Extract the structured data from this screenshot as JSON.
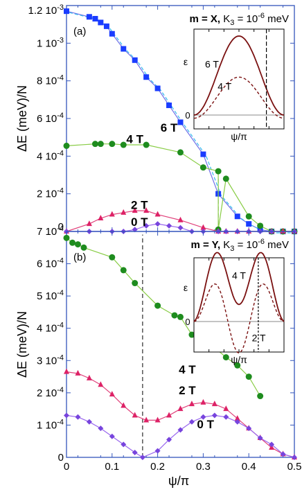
{
  "chart_data": [
    {
      "type": "scatter",
      "panel_label": "(a)",
      "title_bold": "m = X,",
      "title_rest": "K",
      "title_sub": "3",
      "title_eq": "= 10",
      "title_sup": "-6",
      "title_unit": "meV",
      "ylabel": "ΔE (meV)/N",
      "xlim": [
        0,
        0.5
      ],
      "ylim": [
        0,
        0.0012
      ],
      "xticks": [
        {
          "v": 0,
          "t": "0"
        },
        {
          "v": 0.1,
          "t": "0.1"
        },
        {
          "v": 0.2,
          "t": "0.2"
        },
        {
          "v": 0.3,
          "t": "0.3"
        },
        {
          "v": 0.4,
          "t": "0.4"
        },
        {
          "v": 0.5,
          "t": "0.5"
        }
      ],
      "yticks": [
        {
          "v": 0,
          "m": "0",
          "e": ""
        },
        {
          "v": 0.0002,
          "m": "2 10",
          "e": "-4"
        },
        {
          "v": 0.0004,
          "m": "4 10",
          "e": "-4"
        },
        {
          "v": 0.0006,
          "m": "6 10",
          "e": "-4"
        },
        {
          "v": 0.0008,
          "m": "8 10",
          "e": "-4"
        },
        {
          "v": 0.001,
          "m": "1 10",
          "e": "-3"
        },
        {
          "v": 0.0012,
          "m": "1.2 10",
          "e": "-3"
        }
      ],
      "dashed_x": 0.333,
      "dashed_ymax": 0.00029,
      "series": [
        {
          "name": "6 T",
          "color": "#1a3cff",
          "line": "#7070e8",
          "marker": "square",
          "label_xy": [
            0.225,
            0.00053
          ],
          "points": [
            [
              0,
              0.00117
            ],
            [
              0.05,
              0.00114
            ],
            [
              0.063,
              0.00113
            ],
            [
              0.075,
              0.00111
            ],
            [
              0.088,
              0.00109
            ],
            [
              0.1,
              0.00105
            ],
            [
              0.125,
              0.00097
            ],
            [
              0.15,
              0.00091
            ],
            [
              0.175,
              0.00082
            ],
            [
              0.2,
              0.00076
            ],
            [
              0.225,
              0.00067
            ],
            [
              0.25,
              0.00058
            ],
            [
              0.3,
              0.00041
            ],
            [
              0.333,
              0.0002
            ],
            [
              0.375,
              8e-05
            ],
            [
              0.4,
              4e-05
            ],
            [
              0.425,
              1e-05
            ],
            [
              0.45,
              0.0
            ],
            [
              0.475,
              0.0
            ],
            [
              0.5,
              0.0
            ]
          ]
        },
        {
          "name": "4 T",
          "color": "#1e8c1e",
          "line": "#88cc44",
          "marker": "circle",
          "label_xy": [
            0.15,
            0.00047
          ],
          "points": [
            [
              0,
              0.000455
            ],
            [
              0.063,
              0.000465
            ],
            [
              0.075,
              0.000465
            ],
            [
              0.1,
              0.000465
            ],
            [
              0.125,
              0.00046
            ],
            [
              0.175,
              0.00046
            ],
            [
              0.25,
              0.00042
            ],
            [
              0.3,
              0.00034
            ],
            [
              0.333,
              0.00032
            ],
            [
              0.35,
              0.00028
            ],
            [
              0.333,
              1e-05
            ],
            [
              0.4,
              8e-05
            ],
            [
              0.425,
              3e-05
            ],
            [
              0.45,
              0.0
            ],
            [
              0.475,
              0.0
            ],
            [
              0.5,
              0.0
            ]
          ]
        },
        {
          "name": "2 T",
          "color": "#dd2266",
          "line": "#e0407a",
          "marker": "triangle",
          "label_xy": [
            0.16,
            0.00012
          ],
          "points": [
            [
              0,
              0.0
            ],
            [
              0.05,
              4e-05
            ],
            [
              0.075,
              7e-05
            ],
            [
              0.1,
              9e-05
            ],
            [
              0.125,
              0.0001
            ],
            [
              0.15,
              0.00011
            ],
            [
              0.175,
              0.00011
            ],
            [
              0.2,
              9e-05
            ],
            [
              0.25,
              6e-05
            ],
            [
              0.3,
              2e-05
            ],
            [
              0.333,
              0.0
            ],
            [
              0.35,
              0.0
            ],
            [
              0.375,
              -2e-05
            ],
            [
              0.4,
              -2e-05
            ],
            [
              0.45,
              0.0
            ],
            [
              0.475,
              0.0
            ],
            [
              0.5,
              0.0
            ]
          ]
        },
        {
          "name": "0 T",
          "color": "#7744dd",
          "line": "#9966ee",
          "marker": "diamond",
          "label_xy": [
            0.16,
            3e-05
          ],
          "points": [
            [
              0,
              -4e-05
            ],
            [
              0.05,
              -3e-05
            ],
            [
              0.1,
              -1e-05
            ],
            [
              0.125,
              0.0
            ],
            [
              0.15,
              1e-05
            ],
            [
              0.175,
              3e-05
            ],
            [
              0.2,
              4e-05
            ],
            [
              0.225,
              3e-05
            ],
            [
              0.25,
              2e-05
            ],
            [
              0.275,
              0.0
            ],
            [
              0.3,
              -2e-05
            ],
            [
              0.333,
              -4e-05
            ],
            [
              0.35,
              -4e-05
            ],
            [
              0.375,
              -3e-05
            ],
            [
              0.4,
              -2e-05
            ],
            [
              0.425,
              0.0
            ],
            [
              0.45,
              0.0
            ],
            [
              0.5,
              0.0
            ]
          ]
        }
      ],
      "inset": {
        "ylabel": "ε",
        "xlabel": "ψ/π",
        "zero_label": "0",
        "curves": [
          {
            "name": "6 T",
            "style": "solid",
            "amp": 1.0,
            "label_xy": [
              0.2,
              0.6
            ]
          },
          {
            "name": "4 T",
            "style": "dashed",
            "amp": 0.52,
            "label_xy": [
              0.34,
              0.32
            ]
          }
        ],
        "vline": 0.42
      }
    },
    {
      "type": "scatter",
      "panel_label": "(b)",
      "title_bold": "m = Y,",
      "title_rest": "K",
      "title_sub": "3",
      "title_eq": "= 10",
      "title_sup": "-6",
      "title_unit": "meV",
      "ylabel": "ΔE (meV)/N",
      "xlim": [
        0,
        0.5
      ],
      "ylim": [
        0,
        0.0007
      ],
      "xticks": [
        {
          "v": 0,
          "t": "0"
        },
        {
          "v": 0.1,
          "t": "0.1"
        },
        {
          "v": 0.2,
          "t": "0.2"
        },
        {
          "v": 0.3,
          "t": "0.3"
        },
        {
          "v": 0.4,
          "t": "0.4"
        },
        {
          "v": 0.5,
          "t": "0.5"
        }
      ],
      "yticks": [
        {
          "v": 0,
          "m": "0",
          "e": ""
        },
        {
          "v": 0.0001,
          "m": "1 10",
          "e": "-4"
        },
        {
          "v": 0.0002,
          "m": "2 10",
          "e": "-4"
        },
        {
          "v": 0.0003,
          "m": "3 10",
          "e": "-4"
        },
        {
          "v": 0.0004,
          "m": "4 10",
          "e": "-4"
        },
        {
          "v": 0.0005,
          "m": "5 10",
          "e": "-4"
        },
        {
          "v": 0.0006,
          "m": "6 10",
          "e": "-4"
        },
        {
          "v": 0.0007,
          "m": "7 10",
          "e": "-4"
        }
      ],
      "dashed_x": 0.167,
      "dashed_ymax": 0.00069,
      "series": [
        {
          "name": "4 T",
          "color": "#1e8c1e",
          "line": "#88cc44",
          "marker": "circle",
          "label_xy": [
            0.265,
            0.00026
          ],
          "points": [
            [
              0,
              0.00068
            ],
            [
              0.013,
              0.000665
            ],
            [
              0.025,
              0.00066
            ],
            [
              0.038,
              0.00065
            ],
            [
              0.1,
              0.00062
            ],
            [
              0.125,
              0.00058
            ],
            [
              0.15,
              0.00054
            ],
            [
              0.2,
              0.00047
            ],
            [
              0.237,
              0.00044
            ],
            [
              0.25,
              0.000435
            ],
            [
              0.275,
              0.00038
            ],
            [
              0.3,
              0.00036
            ],
            [
              0.325,
              0.00034
            ],
            [
              0.35,
              0.00031
            ],
            [
              0.375,
              0.000285
            ],
            [
              0.4,
              0.00025
            ],
            [
              0.425,
              0.00019
            ]
          ]
        },
        {
          "name": "2 T",
          "color": "#dd2266",
          "line": "#e0407a",
          "marker": "triangle",
          "label_xy": [
            0.265,
            0.000195
          ],
          "points": [
            [
              0,
              0.000265
            ],
            [
              0.025,
              0.00026
            ],
            [
              0.05,
              0.000245
            ],
            [
              0.075,
              0.000225
            ],
            [
              0.1,
              0.000195
            ],
            [
              0.125,
              0.00016
            ],
            [
              0.15,
              0.00013
            ],
            [
              0.175,
              0.000115
            ],
            [
              0.2,
              0.000115
            ],
            [
              0.225,
              0.00013
            ],
            [
              0.25,
              0.00015
            ],
            [
              0.275,
              0.000165
            ],
            [
              0.3,
              0.00017
            ],
            [
              0.325,
              0.000165
            ],
            [
              0.35,
              0.00015
            ],
            [
              0.375,
              0.00012
            ],
            [
              0.4,
              9e-05
            ],
            [
              0.425,
              6e-05
            ],
            [
              0.45,
              3e-05
            ],
            [
              0.475,
              1e-05
            ],
            [
              0.5,
              0.0
            ]
          ]
        },
        {
          "name": "0 T",
          "color": "#7744dd",
          "line": "#9966ee",
          "marker": "diamond",
          "label_xy": [
            0.305,
            9e-05
          ],
          "points": [
            [
              0,
              0.00013
            ],
            [
              0.025,
              0.000125
            ],
            [
              0.05,
              0.00011
            ],
            [
              0.075,
              9e-05
            ],
            [
              0.1,
              6.5e-05
            ],
            [
              0.125,
              4e-05
            ],
            [
              0.15,
              1.5e-05
            ],
            [
              0.167,
              0.0
            ],
            [
              0.2,
              2e-05
            ],
            [
              0.225,
              5.5e-05
            ],
            [
              0.25,
              8.5e-05
            ],
            [
              0.275,
              0.00011
            ],
            [
              0.3,
              0.000125
            ],
            [
              0.325,
              0.00013
            ],
            [
              0.35,
              0.000125
            ],
            [
              0.375,
              0.00011
            ],
            [
              0.4,
              9e-05
            ],
            [
              0.425,
              6e-05
            ],
            [
              0.45,
              4e-05
            ],
            [
              0.475,
              1e-05
            ],
            [
              0.5,
              0.0
            ]
          ]
        }
      ],
      "inset": {
        "ylabel": "ε",
        "xlabel": "ψ/π",
        "zero_label": "0",
        "curves": [
          {
            "name": "4 T",
            "style": "solid",
            "amp": 1.0,
            "label_xy": [
              0.5,
              0.75
            ]
          },
          {
            "name": "2 T",
            "style": "dashed",
            "amp": 0.72,
            "label_xy": [
              0.72,
              -0.35
            ]
          }
        ],
        "vline": 0.33
      }
    }
  ],
  "xlabel": "ψ/π",
  "colors": {
    "frame": "#3355bb",
    "inset_curve": "#7a1010"
  }
}
